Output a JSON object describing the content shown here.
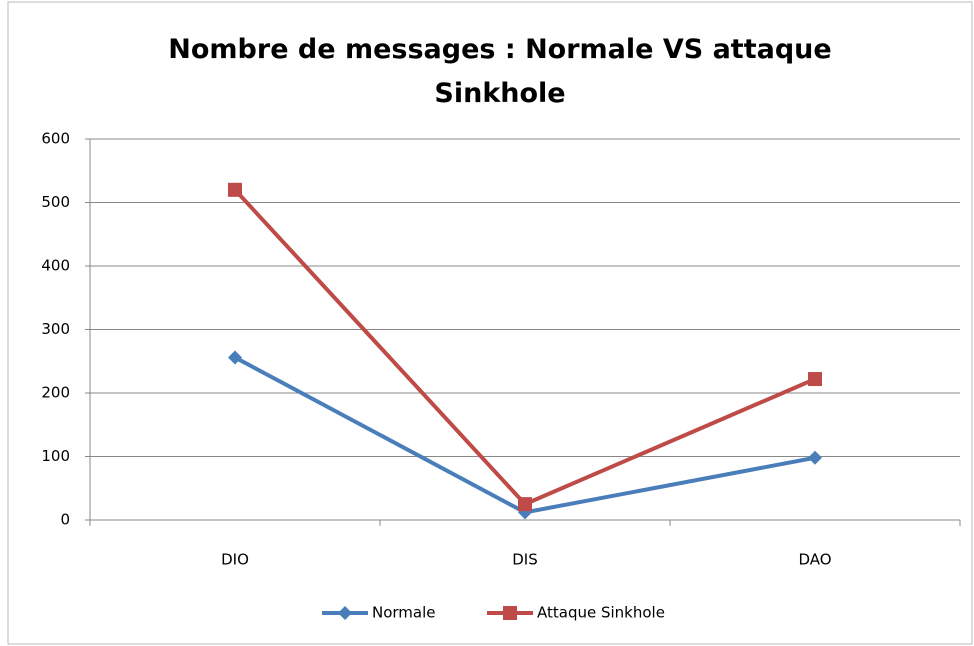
{
  "chart_data": {
    "type": "line",
    "title": "Nombre de messages : Normale VS attaque Sinkhole",
    "categories": [
      "DIO",
      "DIS",
      "DAO"
    ],
    "series": [
      {
        "name": "Normale",
        "color": "#4a7ebb",
        "marker": "diamond",
        "values": [
          256,
          12,
          98
        ]
      },
      {
        "name": "Attaque Sinkhole",
        "color": "#be4b48",
        "marker": "square",
        "values": [
          520,
          25,
          222
        ]
      }
    ],
    "ylim": [
      0,
      600
    ],
    "yticks": [
      0,
      100,
      200,
      300,
      400,
      500,
      600
    ],
    "grid": true,
    "legend": "bottom"
  }
}
